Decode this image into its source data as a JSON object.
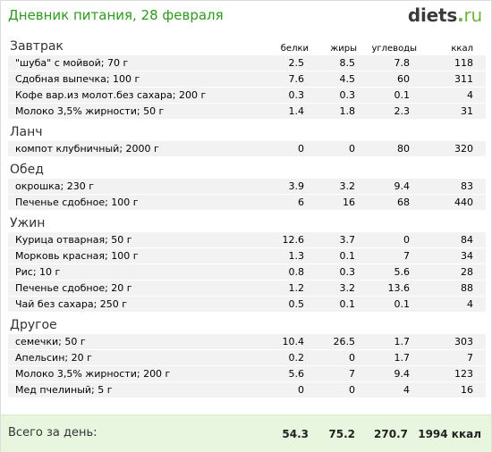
{
  "header": {
    "title": "Дневник питания, 28 февраля",
    "logo": {
      "main": "diets",
      "dot": ".",
      "tld": "ru"
    }
  },
  "columns": {
    "protein": "белки",
    "fat": "жиры",
    "carbs": "углеводы",
    "kcal": "ккал"
  },
  "meals": [
    {
      "name": "Завтрак",
      "show_header": true,
      "items": [
        {
          "name": "\"шуба\" с мойвой; 70 г",
          "protein": "2.5",
          "fat": "8.5",
          "carbs": "7.8",
          "kcal": "118"
        },
        {
          "name": "Сдобная выпечка; 100 г",
          "protein": "7.6",
          "fat": "4.5",
          "carbs": "60",
          "kcal": "311"
        },
        {
          "name": "Кофе вар.из молот.без сахара; 200 г",
          "protein": "0.3",
          "fat": "0.3",
          "carbs": "0.1",
          "kcal": "4"
        },
        {
          "name": "Молоко 3,5% жирности; 50 г",
          "protein": "1.4",
          "fat": "1.8",
          "carbs": "2.3",
          "kcal": "31"
        }
      ]
    },
    {
      "name": "Ланч",
      "show_header": false,
      "items": [
        {
          "name": "компот клубничный; 2000 г",
          "protein": "0",
          "fat": "0",
          "carbs": "80",
          "kcal": "320"
        }
      ]
    },
    {
      "name": "Обед",
      "show_header": false,
      "items": [
        {
          "name": "окрошка; 230 г",
          "protein": "3.9",
          "fat": "3.2",
          "carbs": "9.4",
          "kcal": "83"
        },
        {
          "name": "Печенье сдобное; 100 г",
          "protein": "6",
          "fat": "16",
          "carbs": "68",
          "kcal": "440"
        }
      ]
    },
    {
      "name": "Ужин",
      "show_header": false,
      "items": [
        {
          "name": "Курица отварная; 50 г",
          "protein": "12.6",
          "fat": "3.7",
          "carbs": "0",
          "kcal": "84"
        },
        {
          "name": "Морковь красная; 100 г",
          "protein": "1.3",
          "fat": "0.1",
          "carbs": "7",
          "kcal": "34"
        },
        {
          "name": "Рис; 10 г",
          "protein": "0.8",
          "fat": "0.3",
          "carbs": "5.6",
          "kcal": "28"
        },
        {
          "name": "Печенье сдобное; 20 г",
          "protein": "1.2",
          "fat": "3.2",
          "carbs": "13.6",
          "kcal": "88"
        },
        {
          "name": "Чай без сахара; 250 г",
          "protein": "0.5",
          "fat": "0.1",
          "carbs": "0.1",
          "kcal": "4"
        }
      ]
    },
    {
      "name": "Другое",
      "show_header": false,
      "items": [
        {
          "name": "семечки; 50 г",
          "protein": "10.4",
          "fat": "26.5",
          "carbs": "1.7",
          "kcal": "303"
        },
        {
          "name": "Апельсин; 20 г",
          "protein": "0.2",
          "fat": "0",
          "carbs": "1.7",
          "kcal": "7"
        },
        {
          "name": "Молоко 3,5% жирности; 200 г",
          "protein": "5.6",
          "fat": "7",
          "carbs": "9.4",
          "kcal": "123"
        },
        {
          "name": "Мед пчелиный; 5 г",
          "protein": "0",
          "fat": "0",
          "carbs": "4",
          "kcal": "16"
        }
      ]
    }
  ],
  "totals": {
    "label": "Всего за день:",
    "protein": "54.3",
    "fat": "75.2",
    "carbs": "270.7",
    "kcal": "1994 ккал"
  },
  "colors": {
    "title_green": "#2e9a1e",
    "row_background": "#f2f2f2",
    "footer_background": "#e8f6df",
    "logo_gray": "#3a3a3a",
    "logo_green": "#6fb33b"
  }
}
